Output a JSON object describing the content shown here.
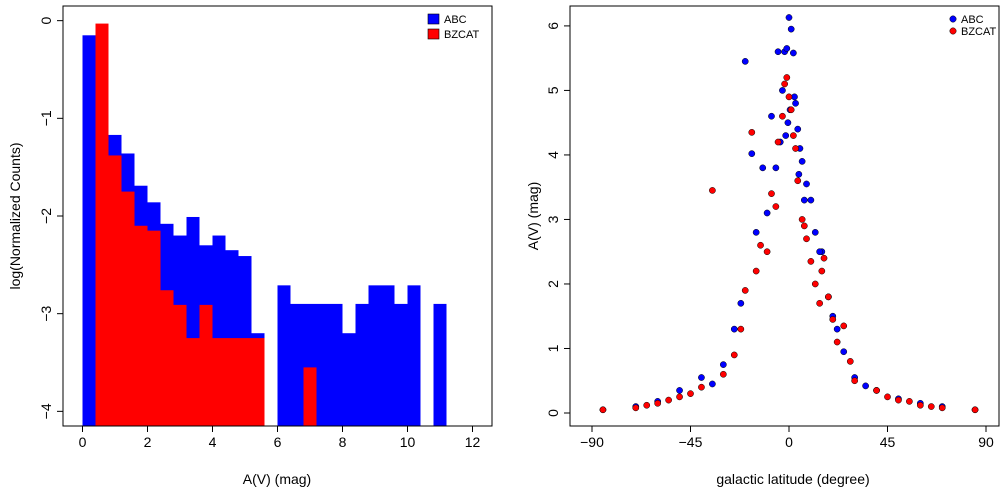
{
  "chart_data": [
    {
      "type": "bar",
      "xlabel": "A(V) (mag)",
      "ylabel": "log(Normalized Counts)",
      "xlim": [
        -0.6,
        12.6
      ],
      "ylim": [
        -4.15,
        0.15
      ],
      "x_ticks": [
        "0",
        "2",
        "4",
        "6",
        "8",
        "10",
        "12"
      ],
      "y_ticks": [
        "0",
        "−1",
        "−2",
        "−3",
        "−4"
      ],
      "bin_width": 0.4,
      "legend_position": "top-right",
      "colors": {
        "ABC": "#0000ff",
        "BZCAT": "#ff0000"
      },
      "series": [
        {
          "name": "ABC",
          "x": [
            0.0,
            0.4,
            0.8,
            1.2,
            1.6,
            2.0,
            2.4,
            2.8,
            3.2,
            3.6,
            4.0,
            4.4,
            4.8,
            5.2,
            6.0,
            6.4,
            6.8,
            7.2,
            7.6,
            8.0,
            8.4,
            8.8,
            9.2,
            9.6,
            10.0,
            10.8
          ],
          "values": [
            -0.15,
            -1.0,
            -1.17,
            -1.36,
            -1.69,
            -1.86,
            -2.08,
            -2.2,
            -2.01,
            -2.3,
            -2.2,
            -2.35,
            -2.41,
            -3.2,
            -2.71,
            -2.9,
            -2.9,
            -2.9,
            -2.9,
            -3.2,
            -2.9,
            -2.71,
            -2.71,
            -2.9,
            -2.71,
            -2.9
          ]
        },
        {
          "name": "BZCAT",
          "x": [
            0.4,
            0.8,
            1.2,
            1.6,
            2.0,
            2.4,
            2.8,
            3.2,
            3.6,
            4.0,
            4.4,
            4.8,
            5.2,
            6.8
          ],
          "values": [
            -0.03,
            -1.38,
            -1.75,
            -2.1,
            -2.15,
            -2.76,
            -2.91,
            -3.25,
            -2.91,
            -3.25,
            -3.25,
            -3.25,
            -3.25,
            -3.55
          ]
        }
      ]
    },
    {
      "type": "scatter",
      "xlabel": "galactic latitude (degree)",
      "ylabel": "A(V) (mag)",
      "xlim": [
        -90,
        90
      ],
      "ylim": [
        0,
        6.2
      ],
      "x_ticks": [
        "−90",
        "−45",
        "0",
        "45",
        "90"
      ],
      "y_ticks": [
        "0",
        "1",
        "2",
        "3",
        "4",
        "5",
        "6"
      ],
      "legend_position": "top-right",
      "colors": {
        "ABC": "#0000ff",
        "BZCAT": "#ff0000"
      },
      "series": [
        {
          "name": "ABC",
          "x": [
            -20,
            -17,
            -12,
            -8,
            -5,
            -3,
            -2,
            -1,
            0,
            1,
            2,
            3,
            4,
            5,
            6,
            8,
            10,
            12,
            15,
            20,
            25,
            -25,
            -30,
            -40,
            -50,
            -60,
            -70,
            -85,
            30,
            40,
            50,
            60,
            70,
            85,
            -15,
            -10,
            -6,
            7,
            14,
            18,
            -22,
            22,
            -35,
            35,
            -1.5,
            2.5,
            -4,
            4.5,
            0.5,
            -0.5
          ],
          "values": [
            5.45,
            4.02,
            3.8,
            4.6,
            5.6,
            5.0,
            5.6,
            5.65,
            6.13,
            5.95,
            5.58,
            4.8,
            4.4,
            4.1,
            3.9,
            3.55,
            3.3,
            2.8,
            2.5,
            1.5,
            0.95,
            1.3,
            0.75,
            0.55,
            0.35,
            0.18,
            0.1,
            0.05,
            0.55,
            0.35,
            0.22,
            0.15,
            0.1,
            0.05,
            2.8,
            3.1,
            3.8,
            3.3,
            2.5,
            1.8,
            1.7,
            1.3,
            0.45,
            0.42,
            4.3,
            4.9,
            4.2,
            3.7,
            4.7,
            4.5
          ]
        },
        {
          "name": "BZCAT",
          "x": [
            -35,
            -17,
            -10,
            -8,
            -5,
            -3,
            -2,
            -1,
            0,
            1,
            2,
            3,
            4,
            6,
            8,
            10,
            12,
            15,
            18,
            20,
            25,
            28,
            -25,
            -30,
            -40,
            -50,
            -60,
            -70,
            -85,
            30,
            40,
            50,
            60,
            70,
            85,
            -20,
            -13,
            -6,
            7,
            14,
            -22,
            22,
            -15,
            16,
            -45,
            45,
            -55,
            55,
            -65,
            65
          ],
          "values": [
            3.45,
            4.35,
            2.5,
            3.4,
            4.2,
            4.6,
            5.1,
            5.2,
            4.9,
            4.7,
            4.3,
            4.1,
            3.6,
            3.0,
            2.7,
            2.35,
            2.0,
            2.2,
            1.8,
            1.45,
            1.35,
            0.8,
            0.9,
            0.6,
            0.4,
            0.25,
            0.15,
            0.08,
            0.05,
            0.5,
            0.35,
            0.2,
            0.12,
            0.08,
            0.05,
            1.9,
            2.6,
            3.2,
            2.9,
            1.7,
            1.3,
            1.1,
            2.2,
            2.4,
            0.3,
            0.25,
            0.2,
            0.18,
            0.12,
            0.1
          ]
        }
      ]
    }
  ]
}
